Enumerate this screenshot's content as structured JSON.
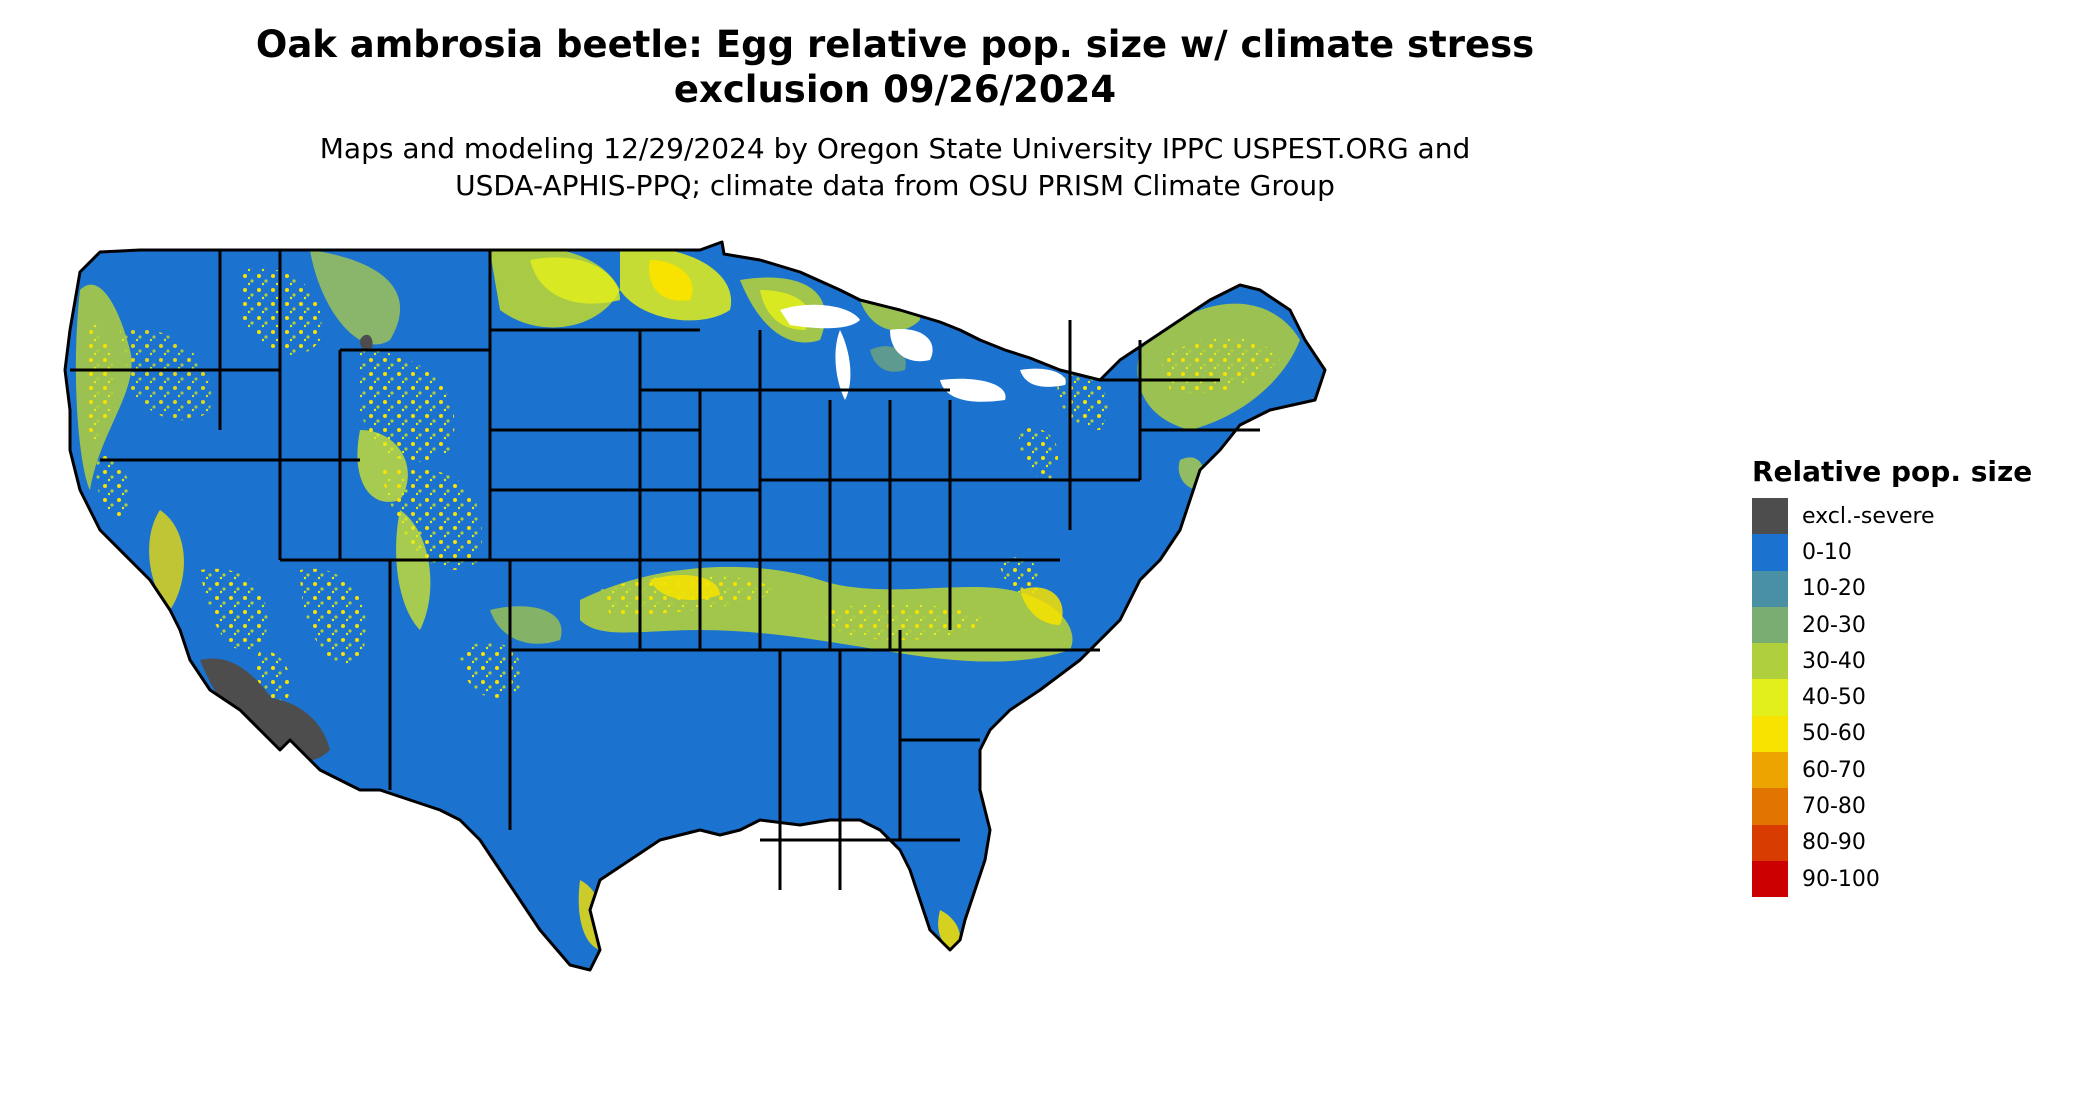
{
  "title": "Oak ambrosia beetle: Egg relative pop. size w/ climate stress\nexclusion 09/26/2024",
  "subtitle": "Maps and modeling 12/29/2024 by Oregon State University IPPC USPEST.ORG and\nUSDA-APHIS-PPQ; climate data from OSU PRISM Climate Group",
  "legend": {
    "title": "Relative pop. size",
    "items": [
      {
        "label": "excl.-severe",
        "color": "#4d4d4d"
      },
      {
        "label": "0-10",
        "color": "#1b72cf"
      },
      {
        "label": "10-20",
        "color": "#4a90a4"
      },
      {
        "label": "20-30",
        "color": "#7aad72"
      },
      {
        "label": "30-40",
        "color": "#b0cf3c"
      },
      {
        "label": "40-50",
        "color": "#e3ef1a"
      },
      {
        "label": "50-60",
        "color": "#f7e200"
      },
      {
        "label": "60-70",
        "color": "#eca400"
      },
      {
        "label": "70-80",
        "color": "#e27400"
      },
      {
        "label": "80-90",
        "color": "#d83c00"
      },
      {
        "label": "90-100",
        "color": "#cc0000"
      }
    ]
  },
  "map": {
    "base_color": "#1b72cf",
    "border_color": "#000000"
  }
}
